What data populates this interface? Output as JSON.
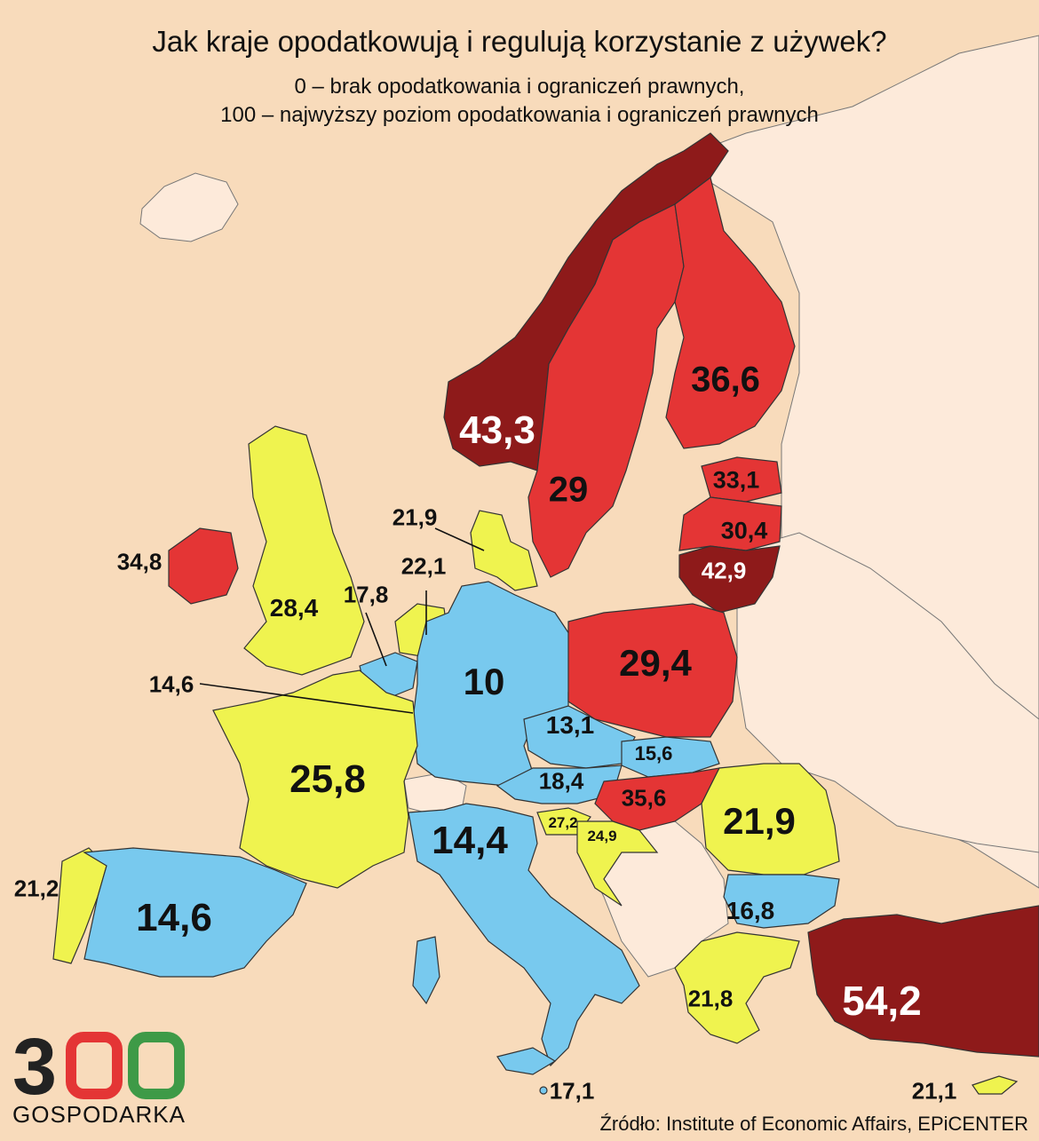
{
  "title": "Jak kraje opodatkowują i regulują korzystanie z używek?",
  "subtitle_line1": "0 – brak opodatkowania i ograniczeń prawnych,",
  "subtitle_line2": "100 – najwyższy poziom opodatkowania i ograniczeń prawnych",
  "colors": {
    "background": "#f8dbbb",
    "non_eu": "#fdeada",
    "blue": "#78c9ee",
    "yellow": "#eff34f",
    "red": "#e43535",
    "dark_red": "#8e1a1a"
  },
  "countries": [
    {
      "name": "Norway",
      "value": "43,3",
      "color": "dark_red"
    },
    {
      "name": "Sweden",
      "value": "29",
      "color": "red"
    },
    {
      "name": "Finland",
      "value": "36,6",
      "color": "red"
    },
    {
      "name": "Estonia",
      "value": "33,1",
      "color": "red"
    },
    {
      "name": "Latvia",
      "value": "30,4",
      "color": "red"
    },
    {
      "name": "Lithuania",
      "value": "42,9",
      "color": "dark_red"
    },
    {
      "name": "Denmark",
      "value": "21,9",
      "color": "yellow"
    },
    {
      "name": "Ireland",
      "value": "34,8",
      "color": "red"
    },
    {
      "name": "United Kingdom",
      "value": "28,4",
      "color": "yellow"
    },
    {
      "name": "Netherlands",
      "value": "22,1",
      "color": "yellow"
    },
    {
      "name": "Belgium",
      "value": "17,8",
      "color": "blue"
    },
    {
      "name": "Luxembourg",
      "value": "14,6",
      "color": "blue"
    },
    {
      "name": "Germany",
      "value": "10",
      "color": "blue"
    },
    {
      "name": "Poland",
      "value": "29,4",
      "color": "red"
    },
    {
      "name": "Czechia",
      "value": "13,1",
      "color": "blue"
    },
    {
      "name": "Slovakia",
      "value": "15,6",
      "color": "blue"
    },
    {
      "name": "Austria",
      "value": "18,4",
      "color": "blue"
    },
    {
      "name": "Hungary",
      "value": "35,6",
      "color": "red"
    },
    {
      "name": "Romania",
      "value": "21,9",
      "color": "yellow"
    },
    {
      "name": "France",
      "value": "25,8",
      "color": "yellow"
    },
    {
      "name": "Italy",
      "value": "14,4",
      "color": "blue"
    },
    {
      "name": "Slovenia",
      "value": "27,2",
      "color": "yellow"
    },
    {
      "name": "Croatia",
      "value": "24,9",
      "color": "yellow"
    },
    {
      "name": "Portugal",
      "value": "21,2",
      "color": "yellow"
    },
    {
      "name": "Spain",
      "value": "14,6",
      "color": "blue"
    },
    {
      "name": "Bulgaria",
      "value": "16,8",
      "color": "blue"
    },
    {
      "name": "Greece",
      "value": "21,8",
      "color": "yellow"
    },
    {
      "name": "Turkey",
      "value": "54,2",
      "color": "dark_red"
    },
    {
      "name": "Malta",
      "value": "17,1",
      "color": "blue"
    },
    {
      "name": "Cyprus",
      "value": "21,1",
      "color": "yellow"
    }
  ],
  "logo": {
    "number": "300",
    "text": "GOSPODARKA"
  },
  "source": "Źródło: Institute of Economic Affairs, EPiCENTER"
}
